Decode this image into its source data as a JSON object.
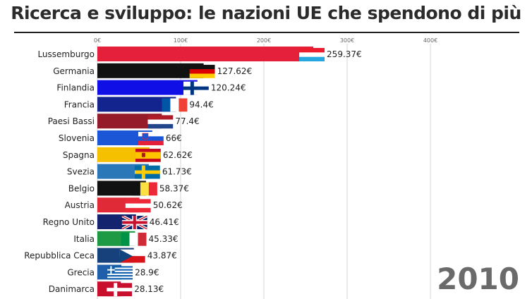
{
  "title": "Ricerca e sviluppo: le nazioni UE che spendono di più",
  "year": "2010",
  "chart_data": {
    "type": "bar",
    "orientation": "horizontal",
    "title": "Ricerca e sviluppo: le nazioni UE che spendono di più",
    "xlabel": "",
    "ylabel": "",
    "xlim": [
      0,
      400
    ],
    "grid": true,
    "x_ticks": [
      "0€",
      "100€",
      "200€",
      "300€",
      "400€"
    ],
    "x_tick_values": [
      0,
      100,
      200,
      300,
      400
    ],
    "categories": [
      "Lussemburgo",
      "Germania",
      "Finlandia",
      "Francia",
      "Paesi Bassi",
      "Slovenia",
      "Spagna",
      "Svezia",
      "Belgio",
      "Austria",
      "Regno Unito",
      "Italia",
      "Repubblica Ceca",
      "Grecia",
      "Danimarca"
    ],
    "values": [
      259.37,
      127.62,
      120.24,
      94.4,
      77.4,
      66,
      62.62,
      61.73,
      58.37,
      50.62,
      46.41,
      45.33,
      43.87,
      28.9,
      28.13
    ],
    "value_labels": [
      "259.37€",
      "127.62€",
      "120.24€",
      "94.4€",
      "77.4€",
      "66€",
      "62.62€",
      "61.73€",
      "58.37€",
      "50.62€",
      "46.41€",
      "45.33€",
      "43.87€",
      "28.9€",
      "28.13€"
    ],
    "bar_colors": [
      "#e4203a",
      "#111111",
      "#1010e6",
      "#14248e",
      "#961b2a",
      "#1a56d6",
      "#f5c000",
      "#2a78b8",
      "#111111",
      "#e02a38",
      "#13236e",
      "#1e9a45",
      "#17417a",
      "#1f5ea8",
      "#c8102e"
    ],
    "flag_icons": [
      "flag-luxembourg",
      "flag-germany",
      "flag-finland",
      "flag-france",
      "flag-netherlands",
      "flag-slovenia",
      "flag-spain",
      "flag-sweden",
      "flag-belgium",
      "flag-austria",
      "flag-united-kingdom",
      "flag-italy",
      "flag-czech-republic",
      "flag-greece",
      "flag-denmark"
    ]
  }
}
